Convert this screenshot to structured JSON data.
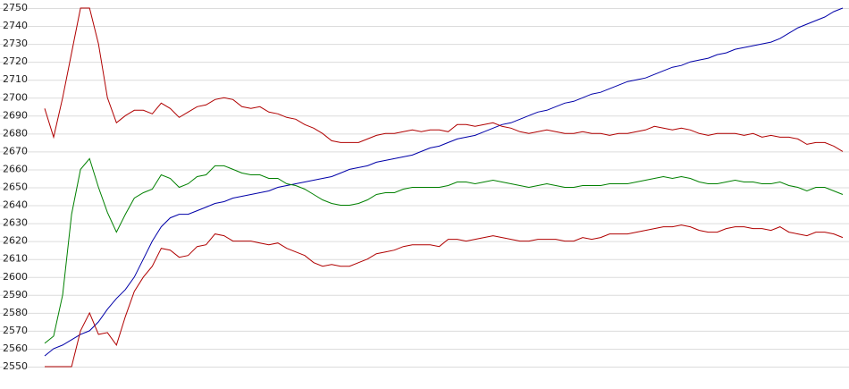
{
  "chart_data": {
    "type": "line",
    "ylim": [
      2550,
      2750
    ],
    "yticks": [
      2550,
      2560,
      2570,
      2580,
      2590,
      2600,
      2610,
      2620,
      2630,
      2640,
      2650,
      2660,
      2670,
      2680,
      2690,
      2700,
      2710,
      2720,
      2730,
      2740,
      2750
    ],
    "grid": true,
    "series": [
      {
        "color": "#0000a8",
        "values": [
          2556,
          2560,
          2562,
          2565,
          2568,
          2570,
          2575,
          2582,
          2588,
          2593,
          2600,
          2610,
          2620,
          2628,
          2633,
          2635,
          2635,
          2637,
          2639,
          2641,
          2642,
          2644,
          2645,
          2646,
          2647,
          2648,
          2650,
          2651,
          2652,
          2653,
          2654,
          2655,
          2656,
          2658,
          2660,
          2661,
          2662,
          2664,
          2665,
          2666,
          2667,
          2668,
          2670,
          2672,
          2673,
          2675,
          2677,
          2678,
          2679,
          2681,
          2683,
          2685,
          2686,
          2688,
          2690,
          2692,
          2693,
          2695,
          2697,
          2698,
          2700,
          2702,
          2703,
          2705,
          2707,
          2709,
          2710,
          2711,
          2713,
          2715,
          2717,
          2718,
          2720,
          2721,
          2722,
          2724,
          2725,
          2727,
          2728,
          2729,
          2730,
          2731,
          2733,
          2736,
          2739,
          2741,
          2743,
          2745,
          2748,
          2750
        ]
      },
      {
        "color": "#b00000",
        "values": [
          2694,
          2678,
          2700,
          2725,
          2750,
          2750,
          2730,
          2700,
          2686,
          2690,
          2693,
          2693,
          2691,
          2697,
          2694,
          2689,
          2692,
          2695,
          2696,
          2699,
          2700,
          2699,
          2695,
          2694,
          2695,
          2692,
          2691,
          2689,
          2688,
          2685,
          2683,
          2680,
          2676,
          2675,
          2675,
          2675,
          2677,
          2679,
          2680,
          2680,
          2681,
          2682,
          2681,
          2682,
          2682,
          2681,
          2685,
          2685,
          2684,
          2685,
          2686,
          2684,
          2683,
          2681,
          2680,
          2681,
          2682,
          2681,
          2680,
          2680,
          2681,
          2680,
          2680,
          2679,
          2680,
          2680,
          2681,
          2682,
          2684,
          2683,
          2682,
          2683,
          2682,
          2680,
          2679,
          2680,
          2680,
          2680,
          2679,
          2680,
          2678,
          2679,
          2678,
          2678,
          2677,
          2674,
          2675,
          2675,
          2673,
          2670
        ]
      },
      {
        "color": "#008000",
        "values": [
          2563,
          2567,
          2590,
          2635,
          2660,
          2666,
          2650,
          2636,
          2625,
          2635,
          2644,
          2647,
          2649,
          2657,
          2655,
          2650,
          2652,
          2656,
          2657,
          2662,
          2662,
          2660,
          2658,
          2657,
          2657,
          2655,
          2655,
          2652,
          2651,
          2649,
          2646,
          2643,
          2641,
          2640,
          2640,
          2641,
          2643,
          2646,
          2647,
          2647,
          2649,
          2650,
          2650,
          2650,
          2650,
          2651,
          2653,
          2653,
          2652,
          2653,
          2654,
          2653,
          2652,
          2651,
          2650,
          2651,
          2652,
          2651,
          2650,
          2650,
          2651,
          2651,
          2651,
          2652,
          2652,
          2652,
          2653,
          2654,
          2655,
          2656,
          2655,
          2656,
          2655,
          2653,
          2652,
          2652,
          2653,
          2654,
          2653,
          2653,
          2652,
          2652,
          2653,
          2651,
          2650,
          2648,
          2650,
          2650,
          2648,
          2646
        ]
      },
      {
        "color": "#b00000",
        "values": [
          2550,
          2550,
          2550,
          2550,
          2570,
          2580,
          2568,
          2569,
          2562,
          2578,
          2592,
          2600,
          2606,
          2616,
          2615,
          2611,
          2612,
          2617,
          2618,
          2624,
          2623,
          2620,
          2620,
          2620,
          2619,
          2618,
          2619,
          2616,
          2614,
          2612,
          2608,
          2606,
          2607,
          2606,
          2606,
          2608,
          2610,
          2613,
          2614,
          2615,
          2617,
          2618,
          2618,
          2618,
          2617,
          2621,
          2621,
          2620,
          2621,
          2622,
          2623,
          2622,
          2621,
          2620,
          2620,
          2621,
          2621,
          2621,
          2620,
          2620,
          2622,
          2621,
          2622,
          2624,
          2624,
          2624,
          2625,
          2626,
          2627,
          2628,
          2628,
          2629,
          2628,
          2626,
          2625,
          2625,
          2627,
          2628,
          2628,
          2627,
          2627,
          2626,
          2628,
          2625,
          2624,
          2623,
          2625,
          2625,
          2624,
          2622
        ]
      }
    ]
  }
}
